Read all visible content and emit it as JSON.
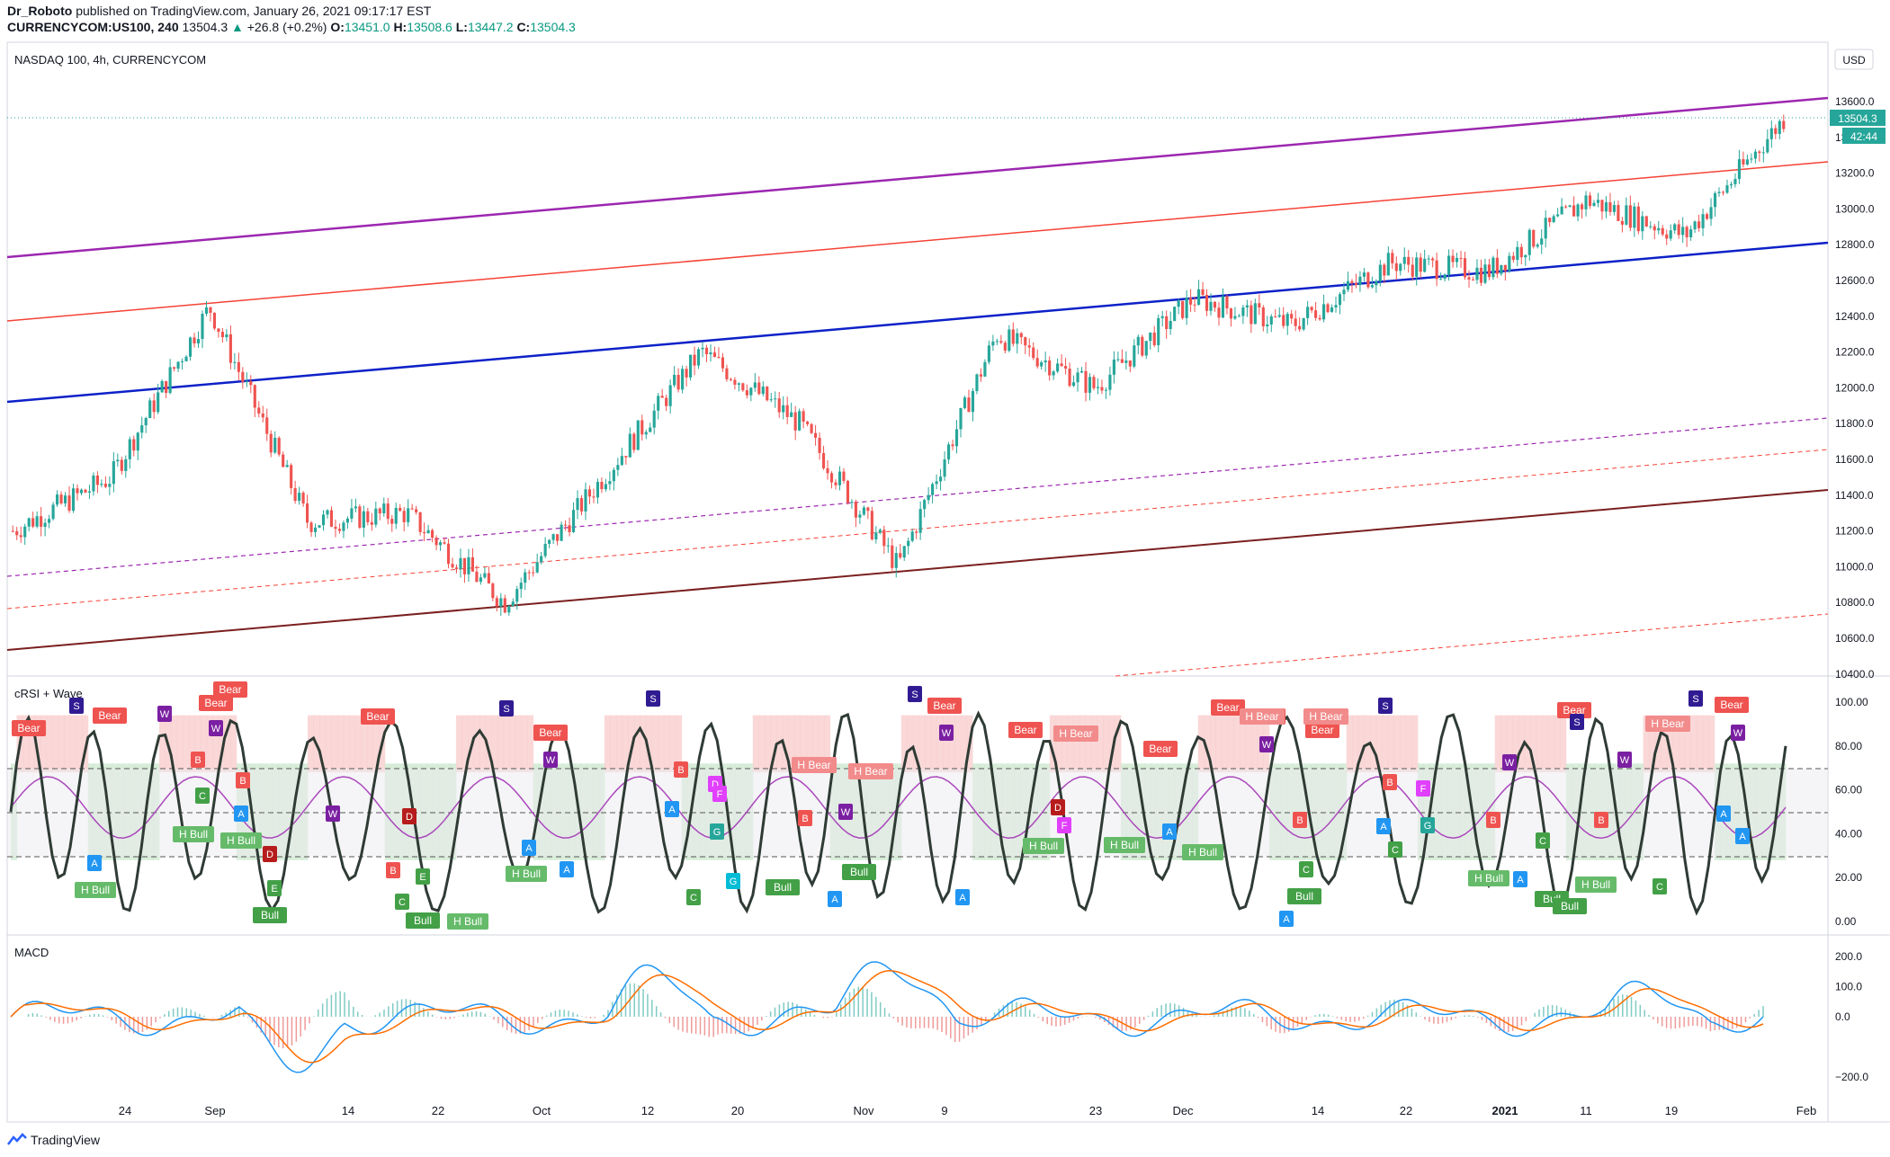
{
  "header": {
    "publisher": "Dr_Roboto",
    "published_text": "published on TradingView.com, January 26, 2021 09:17:17 EST",
    "symbol": "CURRENCYCOM:US100, 240",
    "last": "13504.3",
    "change": "+26.8 (+0.2%)",
    "open_label": "O:",
    "open": "13451.0",
    "high_label": "H:",
    "high": "13508.6",
    "low_label": "L:",
    "low": "13447.2",
    "close_label": "C:",
    "close": "13504.3"
  },
  "main_pane": {
    "title": "NASDAQ 100, 4h, CURRENCYCOM",
    "currency_button": "USD",
    "price_badge": "13504.3",
    "countdown_badge": "42:44",
    "y_ticks": [
      "13600.0",
      "13400.0",
      "13200.0",
      "13000.0",
      "12800.0",
      "12600.0",
      "12400.0",
      "12200.0",
      "12000.0",
      "11800.0",
      "11600.0",
      "11400.0",
      "11200.0",
      "11000.0",
      "10800.0",
      "10600.0",
      "10400.0"
    ]
  },
  "crsi_pane": {
    "title": "cRSI + Wave",
    "y_ticks": [
      "100.00",
      "80.00",
      "60.00",
      "40.00",
      "20.00",
      "0.00"
    ],
    "labels": {
      "bear": "Bear",
      "h_bear": "H Bear",
      "bull": "Bull",
      "h_bull": "H Bull",
      "a": "A",
      "b": "B",
      "c": "C",
      "d": "D",
      "e": "E",
      "f": "F",
      "g": "G",
      "s": "S",
      "w": "W"
    }
  },
  "macd_pane": {
    "title": "MACD",
    "y_ticks": [
      "200.0",
      "100.0",
      "0.0",
      "−200.0"
    ]
  },
  "x_axis": {
    "ticks": [
      "24",
      "Sep",
      "14",
      "22",
      "Oct",
      "12",
      "20",
      "Nov",
      "9",
      "23",
      "Dec",
      "14",
      "22",
      "2021",
      "11",
      "19",
      "Feb"
    ]
  },
  "footer": {
    "brand": "TradingView"
  },
  "colors": {
    "up": "#26a69a",
    "down": "#ef5350",
    "channel_top": "#9c27b0",
    "channel_mid_red": "#f44336",
    "channel_blue": "#0d21c8",
    "channel_bottom": "#7b1f1f",
    "crsi_line": "#2f3b35",
    "crsi_signal": "#ab47bc",
    "macd_line": "#2196f3",
    "signal_line": "#ff6d00",
    "price_badge": "#26a69a"
  },
  "chart_data": [
    {
      "type": "candlestick",
      "title": "NASDAQ 100, 4h, CURRENCYCOM",
      "x": [
        "Aug 17",
        "Aug 24",
        "Sep 1",
        "Sep 8",
        "Sep 14",
        "Sep 22",
        "Oct 1",
        "Oct 12",
        "Oct 20",
        "Nov 1",
        "Nov 9",
        "Nov 23",
        "Dec 1",
        "Dec 14",
        "Dec 22",
        "Jan 1",
        "Jan 11",
        "Jan 19",
        "Jan 26"
      ],
      "close": [
        11200,
        11500,
        12450,
        11250,
        11300,
        10800,
        11500,
        12200,
        11800,
        11000,
        12300,
        12000,
        12500,
        12350,
        12700,
        12650,
        13050,
        12850,
        13504.3
      ],
      "ylim": [
        10400,
        13700
      ]
    },
    {
      "type": "line",
      "title": "cRSI + Wave",
      "ylim": [
        0,
        100
      ],
      "levels": [
        30,
        50,
        70
      ]
    },
    {
      "type": "line",
      "title": "MACD",
      "ylim": [
        -250,
        250
      ]
    }
  ]
}
